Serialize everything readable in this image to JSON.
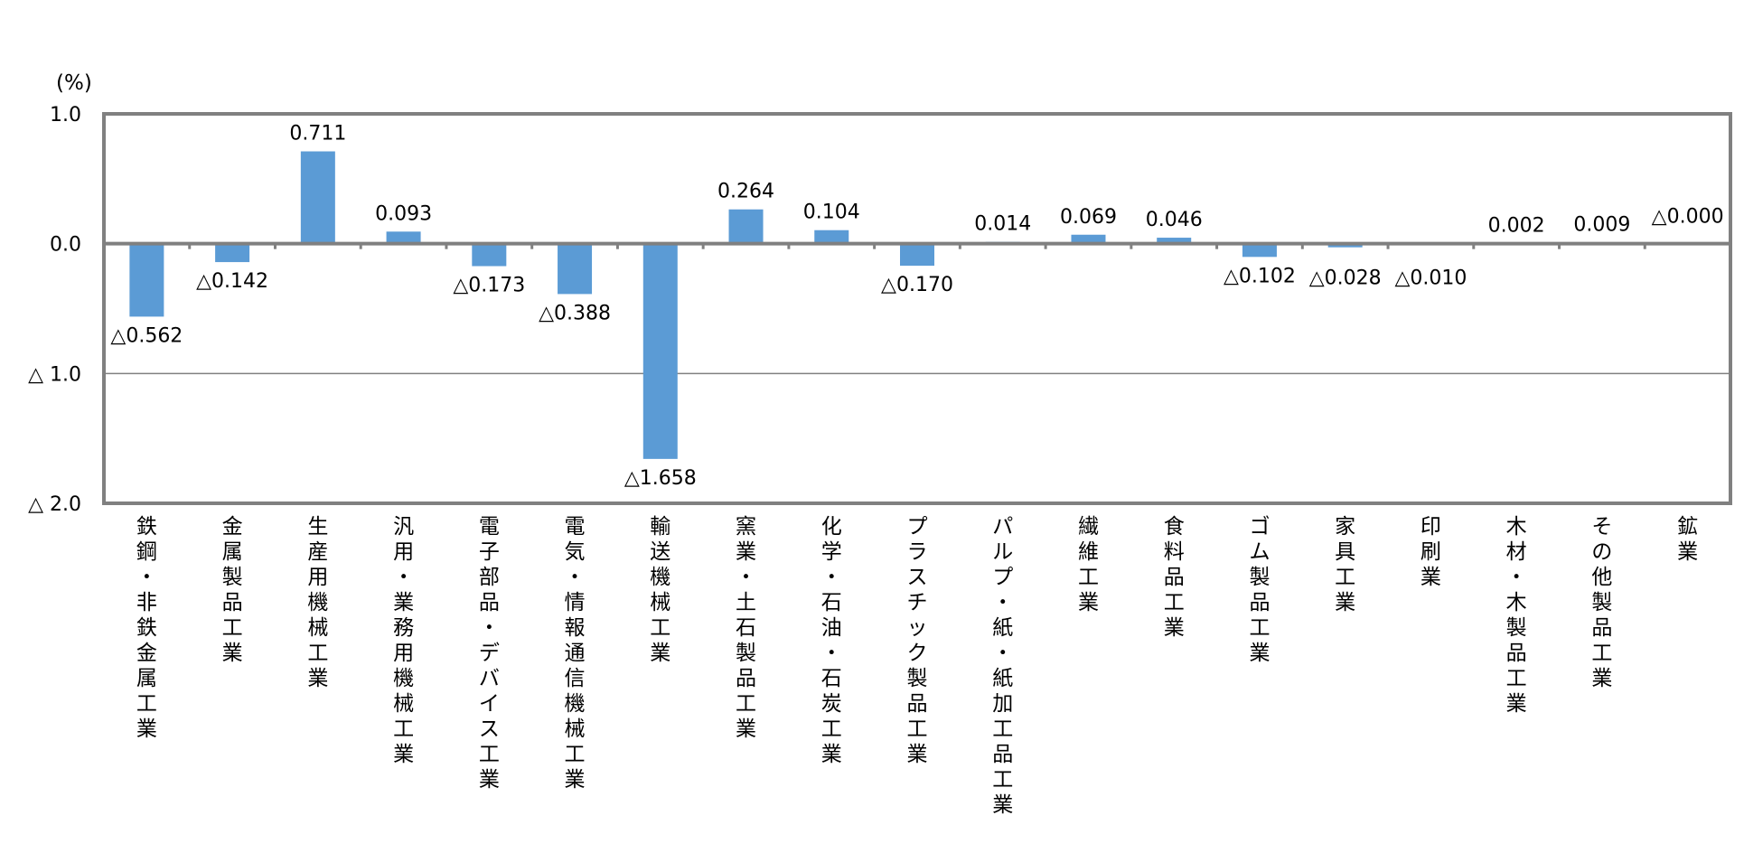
{
  "chart_data": {
    "type": "bar",
    "title": "",
    "unit_label": "(%)",
    "xlabel": "",
    "ylabel": "",
    "ylim": [
      -2.0,
      1.0
    ],
    "yticks": [
      {
        "value": 1.0,
        "label": "1.0"
      },
      {
        "value": 0.0,
        "label": "0.0"
      },
      {
        "value": -1.0,
        "label": "△ 1.0"
      },
      {
        "value": -2.0,
        "label": "△ 2.0"
      }
    ],
    "grid": true,
    "legend": "none",
    "bar_color": "#5B9BD5",
    "categories": [
      "鉄鋼・非鉄金属工業",
      "金属製品工業",
      "生産用機械工業",
      "汎用・業務用機械工業",
      "電子部品・デバイス工業",
      "電気・情報通信機械工業",
      "輸送機械工業",
      "窯業・土石製品工業",
      "化学・石油・石炭工業",
      "プラスチック製品工業",
      "パルプ・紙・紙加工品工業",
      "繊維工業",
      "食料品工業",
      "ゴム製品工業",
      "家具工業",
      "印刷業",
      "木材・木製品工業",
      "その他製品工業",
      "鉱業"
    ],
    "values": [
      -0.562,
      -0.142,
      0.711,
      0.093,
      -0.173,
      -0.388,
      -1.658,
      0.264,
      0.104,
      -0.17,
      0.014,
      0.069,
      0.046,
      -0.102,
      -0.028,
      -0.01,
      0.002,
      0.009,
      -0.0
    ],
    "data_labels": [
      "△0.562",
      "△0.142",
      "0.711",
      "0.093",
      "△0.173",
      "△0.388",
      "△1.658",
      "0.264",
      "0.104",
      "△0.170",
      "0.014",
      "0.069",
      "0.046",
      "△0.102",
      "△0.028",
      "△0.010",
      "0.002",
      "0.009",
      "△0.000"
    ]
  }
}
